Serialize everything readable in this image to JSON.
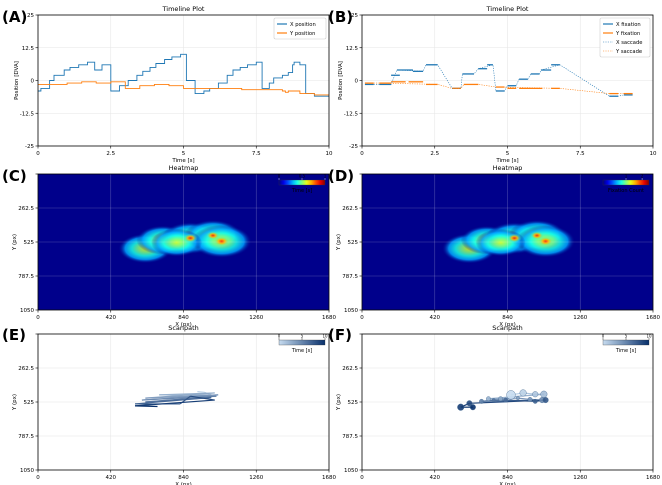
{
  "chart_data": [
    {
      "letter": "(A)",
      "type": "line",
      "title": "Timeline Plot",
      "xlabel": "Time [s]",
      "ylabel": "Position [DVA]",
      "xlim": [
        0,
        10
      ],
      "ylim": [
        -25,
        25
      ],
      "xticks": [
        "0",
        "2.5",
        "5",
        "7.5",
        "10"
      ],
      "yticks": [
        "25",
        "12.5",
        "0",
        "-12.5",
        "-25"
      ],
      "grid": true,
      "legend": "top-right",
      "series": [
        {
          "name": "X position",
          "color": "#1f77b4",
          "style": "line",
          "x": [
            0,
            0.1,
            0.4,
            0.55,
            0.9,
            1.1,
            1.4,
            1.7,
            1.95,
            2.2,
            2.5,
            2.8,
            3.1,
            3.4,
            3.6,
            3.85,
            4.05,
            4.35,
            4.6,
            4.9,
            5.1,
            5.4,
            5.7,
            5.9,
            6.2,
            6.5,
            6.7,
            6.95,
            7.2,
            7.5,
            7.7,
            7.95,
            8.1,
            8.4,
            8.6,
            8.75,
            8.8,
            9.0,
            9.2,
            9.5,
            9.8,
            10
          ],
          "y": [
            -4,
            -3,
            0,
            2,
            4,
            5,
            6,
            7,
            4,
            6,
            -4,
            -2,
            0,
            2,
            3.5,
            5,
            6.5,
            8,
            9,
            10,
            0,
            -5,
            -4,
            -3,
            -1,
            2,
            4,
            5,
            6,
            7,
            -3,
            -1,
            1,
            2,
            3,
            6,
            7,
            6,
            -5,
            -6,
            -6,
            -6
          ]
        },
        {
          "name": "Y position",
          "color": "#ff7f0e",
          "style": "line",
          "x": [
            0,
            0.5,
            1.0,
            1.5,
            2.0,
            2.5,
            3.0,
            3.5,
            4.0,
            4.5,
            5.0,
            5.5,
            6.0,
            6.5,
            7.0,
            7.5,
            8.0,
            8.4,
            8.5,
            8.6,
            9.0,
            9.5,
            10
          ],
          "y": [
            -1.5,
            -1.5,
            -1,
            -0.5,
            -1,
            -0.5,
            -3,
            -2,
            -1.5,
            -2,
            -3,
            -3,
            -3,
            -3,
            -3.5,
            -3.5,
            -3.5,
            -4,
            -4.5,
            -4,
            -5,
            -5.5,
            -5.5
          ]
        }
      ]
    },
    {
      "letter": "(B)",
      "type": "line",
      "title": "Timeline Plot",
      "xlabel": "Time [s]",
      "ylabel": "Position [DVA]",
      "xlim": [
        0,
        10
      ],
      "ylim": [
        -25,
        25
      ],
      "xticks": [
        "0",
        "2.5",
        "5",
        "7.5",
        "10"
      ],
      "yticks": [
        "25",
        "12.5",
        "0",
        "-12.5",
        "-25"
      ],
      "grid": true,
      "legend": "top-right",
      "series": [
        {
          "name": "X fixation",
          "color": "#1f77b4",
          "style": "segments",
          "segments": [
            [
              0.1,
              0.4,
              -1.5
            ],
            [
              0.6,
              1.0,
              -1.5
            ],
            [
              1.0,
              1.3,
              2
            ],
            [
              1.2,
              1.75,
              4
            ],
            [
              1.75,
              2.1,
              3.5
            ],
            [
              2.2,
              2.6,
              6
            ],
            [
              3.1,
              3.4,
              -3
            ],
            [
              3.45,
              3.85,
              2.5
            ],
            [
              4.0,
              4.3,
              4.5
            ],
            [
              4.3,
              4.5,
              6
            ],
            [
              4.6,
              4.9,
              -4
            ],
            [
              5.0,
              5.3,
              -2
            ],
            [
              5.4,
              5.7,
              0.5
            ],
            [
              5.8,
              6.1,
              2.5
            ],
            [
              6.15,
              6.5,
              4
            ],
            [
              6.5,
              6.8,
              6
            ],
            [
              8.5,
              8.8,
              -6
            ],
            [
              9.0,
              9.3,
              -5.5
            ]
          ]
        },
        {
          "name": "Y fixation",
          "color": "#ff7f0e",
          "style": "segments",
          "segments": [
            [
              0.1,
              0.4,
              -1
            ],
            [
              0.6,
              1.0,
              -1
            ],
            [
              1.0,
              1.5,
              -0.5
            ],
            [
              1.6,
              2.1,
              -0.5
            ],
            [
              2.2,
              2.6,
              -1.5
            ],
            [
              3.1,
              3.4,
              -3
            ],
            [
              3.5,
              4.0,
              -1.5
            ],
            [
              4.6,
              4.9,
              -2.5
            ],
            [
              5.0,
              5.3,
              -3
            ],
            [
              5.4,
              6.2,
              -3
            ],
            [
              6.5,
              6.8,
              -3
            ],
            [
              8.5,
              8.8,
              -5
            ],
            [
              9.0,
              9.3,
              -5
            ]
          ]
        },
        {
          "name": "X saccade",
          "color": "#1f77b4",
          "style": "dotted",
          "x": [
            0.4,
            0.6,
            1.0,
            1.2,
            2.1,
            2.2,
            2.6,
            3.1,
            3.4,
            3.45,
            3.85,
            4.0,
            4.5,
            4.6,
            4.9,
            5.0,
            5.3,
            5.4,
            5.7,
            5.8,
            6.1,
            6.15,
            6.8,
            8.5,
            8.8,
            9.0
          ],
          "y": [
            -1.5,
            -1.5,
            -1.5,
            4,
            3.5,
            6,
            6,
            -3,
            -3,
            2.5,
            2.5,
            4.5,
            6,
            -4,
            -4,
            -2,
            -2,
            0.5,
            0.5,
            2.5,
            2.5,
            4,
            6,
            -6,
            -6,
            -5.5
          ]
        },
        {
          "name": "Y saccade",
          "color": "#ff7f0e",
          "style": "dotted",
          "x": [
            0.4,
            0.6,
            2.6,
            3.1,
            3.4,
            3.5,
            4.0,
            4.6,
            6.8,
            8.5,
            8.8,
            9.0
          ],
          "y": [
            -1,
            -1,
            -1.5,
            -3,
            -3,
            -1.5,
            -1.5,
            -2.5,
            -3,
            -5,
            -5,
            -5
          ]
        }
      ]
    },
    {
      "letter": "(C)",
      "type": "heatmap",
      "title": "Heatmap",
      "xlabel": "X (px)",
      "ylabel": "Y (px)",
      "xlim": [
        0,
        1680
      ],
      "ylim": [
        0,
        1050
      ],
      "xticks": [
        "0",
        "420",
        "840",
        "1260",
        "1680"
      ],
      "yticks": [
        "262.5",
        "525",
        "787.5",
        "1050"
      ],
      "colorbar": {
        "label": "Time [s]",
        "ticks": [
          "0",
          "0.5",
          "1"
        ]
      },
      "blobs": [
        {
          "x": 620,
          "y": 575,
          "intensity": 0.7
        },
        {
          "x": 720,
          "y": 510,
          "intensity": 0.65
        },
        {
          "x": 880,
          "y": 495,
          "intensity": 0.9
        },
        {
          "x": 1010,
          "y": 475,
          "intensity": 0.85
        },
        {
          "x": 1060,
          "y": 520,
          "intensity": 1.0
        },
        {
          "x": 800,
          "y": 530,
          "intensity": 0.55
        }
      ]
    },
    {
      "letter": "(D)",
      "type": "heatmap",
      "title": "Heatmap",
      "xlabel": "X (px)",
      "ylabel": "Y (px)",
      "xlim": [
        0,
        1680
      ],
      "ylim": [
        0,
        1050
      ],
      "xticks": [
        "0",
        "420",
        "840",
        "1260",
        "1680"
      ],
      "yticks": [
        "262.5",
        "525",
        "787.5",
        "1050"
      ],
      "colorbar": {
        "label": "Fixation Count",
        "ticks": [
          "1",
          "2"
        ]
      },
      "blobs": [
        {
          "x": 620,
          "y": 575,
          "intensity": 0.75
        },
        {
          "x": 720,
          "y": 510,
          "intensity": 0.6
        },
        {
          "x": 880,
          "y": 495,
          "intensity": 0.9
        },
        {
          "x": 1010,
          "y": 475,
          "intensity": 0.85
        },
        {
          "x": 1060,
          "y": 520,
          "intensity": 0.95
        },
        {
          "x": 800,
          "y": 530,
          "intensity": 0.5
        }
      ]
    },
    {
      "letter": "(E)",
      "type": "line",
      "title": "Scanpath",
      "xlabel": "X (px)",
      "ylabel": "Y (px)",
      "xlim": [
        0,
        1680
      ],
      "ylim": [
        0,
        1050
      ],
      "xticks": [
        "0",
        "420",
        "840",
        "1260",
        "1680"
      ],
      "yticks": [
        "262.5",
        "525",
        "787.5",
        "1050"
      ],
      "colorbar": {
        "label": "Time [s]",
        "ticks": [
          "0",
          "5",
          "10"
        ]
      },
      "x": [
        920,
        960,
        1000,
        700,
        1020,
        620,
        1040,
        600,
        1030,
        620,
        1000,
        560,
        820,
        880,
        1020,
        560,
        690
      ],
      "y": [
        445,
        450,
        470,
        470,
        455,
        495,
        470,
        510,
        480,
        525,
        490,
        540,
        540,
        480,
        510,
        555,
        560
      ],
      "t": [
        0,
        0.6,
        1.2,
        1.8,
        2.4,
        3.0,
        3.6,
        4.2,
        4.8,
        5.4,
        6.0,
        6.6,
        7.2,
        7.8,
        8.4,
        9.2,
        10
      ]
    },
    {
      "letter": "(F)",
      "type": "scatter",
      "title": "Scanpath",
      "xlabel": "X (px)",
      "ylabel": "Y (px)",
      "xlim": [
        0,
        1680
      ],
      "ylim": [
        0,
        1050
      ],
      "xticks": [
        "0",
        "420",
        "840",
        "1260",
        "1680"
      ],
      "yticks": [
        "262.5",
        "525",
        "787.5",
        "1050"
      ],
      "colorbar": {
        "label": "Time [s]",
        "ticks": [
          "0",
          "5",
          "10"
        ]
      },
      "x": [
        860,
        930,
        1000,
        1050,
        730,
        800,
        900,
        970,
        1040,
        690,
        760,
        830,
        1000,
        1060,
        620,
        570,
        640
      ],
      "y": [
        470,
        455,
        465,
        465,
        500,
        500,
        495,
        505,
        510,
        520,
        510,
        510,
        520,
        510,
        535,
        565,
        565
      ],
      "t": [
        0,
        0.6,
        1.2,
        1.8,
        2.4,
        3.0,
        3.6,
        4.2,
        4.8,
        5.4,
        6.0,
        6.6,
        7.2,
        7.8,
        8.6,
        9.3,
        10
      ],
      "size": [
        8,
        6,
        5,
        6,
        4,
        4,
        3,
        4,
        5,
        4,
        3,
        4,
        4,
        5,
        5,
        6,
        5
      ]
    }
  ]
}
